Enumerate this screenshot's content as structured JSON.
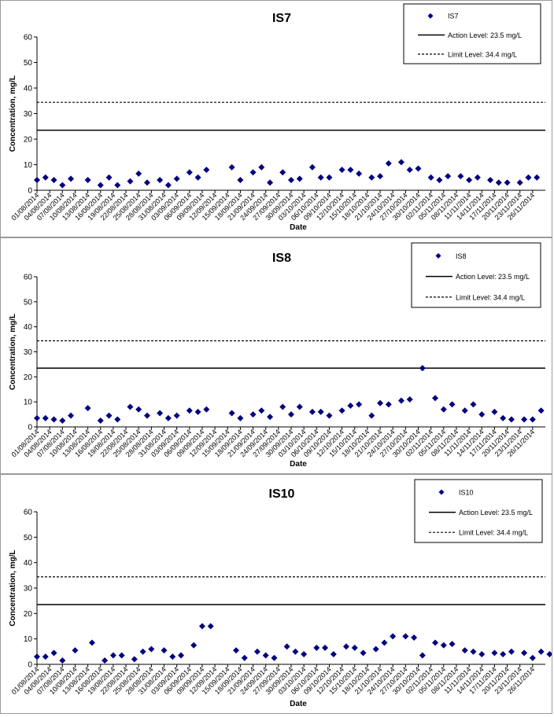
{
  "chart_data": [
    {
      "type": "scatter",
      "title": "IS7",
      "xlabel": "Date",
      "ylabel": "Concentration, mg/L",
      "ylim": [
        0,
        60
      ],
      "yticks": [
        0,
        10,
        20,
        30,
        40,
        50,
        60
      ],
      "x_tick_labels": [
        "01/08/2014",
        "04/08/2014",
        "07/08/2014",
        "10/08/2014",
        "13/08/2014",
        "16/08/2014",
        "19/08/2014",
        "22/08/2014",
        "25/08/2014",
        "28/08/2014",
        "31/08/2014",
        "03/09/2014",
        "06/09/2014",
        "09/09/2014",
        "12/09/2014",
        "15/09/2014",
        "18/09/2014",
        "21/09/2014",
        "24/09/2014",
        "27/09/2014",
        "30/09/2014",
        "03/10/2014",
        "06/10/2014",
        "09/10/2014",
        "12/10/2014",
        "15/10/2014",
        "18/10/2014",
        "21/10/2014",
        "24/10/2014",
        "27/10/2014",
        "30/10/2014",
        "02/11/2014",
        "05/11/2014",
        "08/11/2014",
        "11/11/2014",
        "14/11/2014",
        "17/11/2014",
        "20/11/2014",
        "23/11/2014",
        "26/11/2014"
      ],
      "legend": {
        "position": "top-right",
        "entries": [
          "IS7",
          "Action Level: 23.5 mg/L",
          "Limit Level: 34.4 mg/L"
        ]
      },
      "series": [
        {
          "name": "IS7",
          "marker": "diamond",
          "color": "#000080",
          "points": [
            [
              "01/08/2014",
              4
            ],
            [
              "03/08/2014",
              5
            ],
            [
              "05/08/2014",
              4
            ],
            [
              "07/08/2014",
              2
            ],
            [
              "09/08/2014",
              4.5
            ],
            [
              "13/08/2014",
              4
            ],
            [
              "16/08/2014",
              2
            ],
            [
              "18/08/2014",
              5
            ],
            [
              "20/08/2014",
              2
            ],
            [
              "23/08/2014",
              3.5
            ],
            [
              "25/08/2014",
              6.5
            ],
            [
              "27/08/2014",
              3
            ],
            [
              "30/08/2014",
              4
            ],
            [
              "01/09/2014",
              2
            ],
            [
              "03/09/2014",
              4.5
            ],
            [
              "06/09/2014",
              7
            ],
            [
              "08/09/2014",
              5
            ],
            [
              "10/09/2014",
              8
            ],
            [
              "16/09/2014",
              9
            ],
            [
              "18/09/2014",
              4
            ],
            [
              "21/09/2014",
              7
            ],
            [
              "23/09/2014",
              9
            ],
            [
              "25/09/2014",
              3
            ],
            [
              "28/09/2014",
              7
            ],
            [
              "30/09/2014",
              4
            ],
            [
              "02/10/2014",
              4.5
            ],
            [
              "05/10/2014",
              9
            ],
            [
              "07/10/2014",
              5
            ],
            [
              "09/10/2014",
              5
            ],
            [
              "12/10/2014",
              8
            ],
            [
              "14/10/2014",
              8
            ],
            [
              "16/10/2014",
              6.5
            ],
            [
              "19/10/2014",
              5
            ],
            [
              "21/10/2014",
              5.5
            ],
            [
              "23/10/2014",
              10.5
            ],
            [
              "26/10/2014",
              11
            ],
            [
              "28/10/2014",
              8
            ],
            [
              "30/10/2014",
              8.5
            ],
            [
              "02/11/2014",
              5
            ],
            [
              "04/11/2014",
              4
            ],
            [
              "06/11/2014",
              5.5
            ],
            [
              "09/11/2014",
              5.5
            ],
            [
              "11/11/2014",
              4
            ],
            [
              "13/11/2014",
              5
            ],
            [
              "16/11/2014",
              4
            ],
            [
              "18/11/2014",
              3
            ],
            [
              "20/11/2014",
              3
            ],
            [
              "23/11/2014",
              3
            ],
            [
              "25/11/2014",
              5
            ],
            [
              "27/11/2014",
              5
            ]
          ]
        }
      ],
      "reference_lines": [
        {
          "label": "Action Level: 23.5 mg/L",
          "value": 23.5,
          "style": "solid"
        },
        {
          "label": "Limit Level: 34.4 mg/L",
          "value": 34.4,
          "style": "dashed"
        }
      ]
    },
    {
      "type": "scatter",
      "title": "IS8",
      "xlabel": "Date",
      "ylabel": "Concentration, mg/L",
      "ylim": [
        0,
        60
      ],
      "yticks": [
        0,
        10,
        20,
        30,
        40,
        50,
        60
      ],
      "x_tick_labels": [
        "01/08/2014",
        "04/08/2014",
        "07/08/2014",
        "10/08/2014",
        "13/08/2014",
        "16/08/2014",
        "19/08/2014",
        "22/08/2014",
        "25/08/2014",
        "28/08/2014",
        "31/08/2014",
        "03/09/2014",
        "06/09/2014",
        "09/09/2014",
        "12/09/2014",
        "15/09/2014",
        "18/09/2014",
        "21/09/2014",
        "24/09/2014",
        "27/09/2014",
        "30/09/2014",
        "03/10/2014",
        "06/10/2014",
        "09/10/2014",
        "12/10/2014",
        "15/10/2014",
        "18/10/2014",
        "21/10/2014",
        "24/10/2014",
        "27/10/2014",
        "30/10/2014",
        "02/11/2014",
        "05/11/2014",
        "08/11/2014",
        "11/11/2014",
        "14/11/2014",
        "17/11/2014",
        "20/11/2014",
        "23/11/2014",
        "26/11/2014"
      ],
      "legend": {
        "position": "top-right",
        "entries": [
          "IS8",
          "Action Level: 23.5 mg/L",
          "Limit Level: 34.4 mg/L"
        ]
      },
      "series": [
        {
          "name": "IS8",
          "marker": "diamond",
          "color": "#000080",
          "points": [
            [
              "01/08/2014",
              3.5
            ],
            [
              "03/08/2014",
              3.5
            ],
            [
              "05/08/2014",
              3
            ],
            [
              "07/08/2014",
              2.5
            ],
            [
              "09/08/2014",
              4.5
            ],
            [
              "13/08/2014",
              7.5
            ],
            [
              "16/08/2014",
              2.5
            ],
            [
              "18/08/2014",
              4.5
            ],
            [
              "20/08/2014",
              3
            ],
            [
              "23/08/2014",
              8
            ],
            [
              "25/08/2014",
              7
            ],
            [
              "27/08/2014",
              4.5
            ],
            [
              "30/08/2014",
              5.5
            ],
            [
              "01/09/2014",
              3.5
            ],
            [
              "03/09/2014",
              4.5
            ],
            [
              "06/09/2014",
              6.5
            ],
            [
              "08/09/2014",
              6
            ],
            [
              "10/09/2014",
              7
            ],
            [
              "16/09/2014",
              5.5
            ],
            [
              "18/09/2014",
              3.5
            ],
            [
              "21/09/2014",
              5
            ],
            [
              "23/09/2014",
              6.5
            ],
            [
              "25/09/2014",
              4
            ],
            [
              "28/09/2014",
              8
            ],
            [
              "30/09/2014",
              5
            ],
            [
              "02/10/2014",
              8
            ],
            [
              "05/10/2014",
              6
            ],
            [
              "07/10/2014",
              6
            ],
            [
              "09/10/2014",
              4.5
            ],
            [
              "12/10/2014",
              6.5
            ],
            [
              "14/10/2014",
              8.5
            ],
            [
              "16/10/2014",
              9
            ],
            [
              "19/10/2014",
              4.5
            ],
            [
              "21/10/2014",
              9.5
            ],
            [
              "23/10/2014",
              9
            ],
            [
              "26/10/2014",
              10.5
            ],
            [
              "28/10/2014",
              11
            ],
            [
              "31/10/2014",
              23.5
            ],
            [
              "03/11/2014",
              11.5
            ],
            [
              "05/11/2014",
              7
            ],
            [
              "07/11/2014",
              9
            ],
            [
              "10/11/2014",
              6.5
            ],
            [
              "12/11/2014",
              9
            ],
            [
              "14/11/2014",
              5
            ],
            [
              "17/11/2014",
              6
            ],
            [
              "19/11/2014",
              3.5
            ],
            [
              "21/11/2014",
              3
            ],
            [
              "24/11/2014",
              3
            ],
            [
              "26/11/2014",
              3
            ],
            [
              "28/11/2014",
              6.5
            ]
          ]
        }
      ],
      "reference_lines": [
        {
          "label": "Action Level: 23.5 mg/L",
          "value": 23.5,
          "style": "solid"
        },
        {
          "label": "Limit Level: 34.4 mg/L",
          "value": 34.4,
          "style": "dashed"
        }
      ]
    },
    {
      "type": "scatter",
      "title": "IS10",
      "xlabel": "Date",
      "ylabel": "Concentration, mg/L",
      "ylim": [
        0,
        60
      ],
      "yticks": [
        0,
        10,
        20,
        30,
        40,
        50,
        60
      ],
      "x_tick_labels": [
        "01/08/2014",
        "04/08/2014",
        "07/08/2014",
        "10/08/2014",
        "13/08/2014",
        "16/08/2014",
        "19/08/2014",
        "22/08/2014",
        "25/08/2014",
        "28/08/2014",
        "31/08/2014",
        "03/09/2014",
        "06/09/2014",
        "09/09/2014",
        "12/09/2014",
        "15/09/2014",
        "18/09/2014",
        "21/09/2014",
        "24/09/2014",
        "27/09/2014",
        "30/09/2014",
        "03/10/2014",
        "06/10/2014",
        "09/10/2014",
        "12/10/2014",
        "15/10/2014",
        "18/10/2014",
        "21/10/2014",
        "24/10/2014",
        "27/10/2014",
        "30/10/2014",
        "02/11/2014",
        "05/11/2014",
        "08/11/2014",
        "11/11/2014",
        "14/11/2014",
        "17/11/2014",
        "20/11/2014",
        "23/11/2014",
        "26/11/2014"
      ],
      "legend": {
        "position": "top-right",
        "entries": [
          "IS10",
          "Action Level: 23.5 mg/L",
          "Limit Level: 34.4 mg/L"
        ]
      },
      "series": [
        {
          "name": "IS10",
          "marker": "diamond",
          "color": "#000080",
          "points": [
            [
              "01/08/2014",
              3
            ],
            [
              "03/08/2014",
              3
            ],
            [
              "05/08/2014",
              4.5
            ],
            [
              "07/08/2014",
              1.5
            ],
            [
              "10/08/2014",
              5.5
            ],
            [
              "14/08/2014",
              8.5
            ],
            [
              "17/08/2014",
              1.5
            ],
            [
              "19/08/2014",
              3.5
            ],
            [
              "21/08/2014",
              3.5
            ],
            [
              "24/08/2014",
              2
            ],
            [
              "26/08/2014",
              5
            ],
            [
              "28/08/2014",
              6
            ],
            [
              "31/08/2014",
              5.5
            ],
            [
              "02/09/2014",
              3
            ],
            [
              "04/09/2014",
              3.5
            ],
            [
              "07/09/2014",
              7.5
            ],
            [
              "09/09/2014",
              15
            ],
            [
              "11/09/2014",
              15
            ],
            [
              "17/09/2014",
              5.5
            ],
            [
              "19/09/2014",
              2.5
            ],
            [
              "22/09/2014",
              5
            ],
            [
              "24/09/2014",
              3.5
            ],
            [
              "26/09/2014",
              2.5
            ],
            [
              "29/09/2014",
              7
            ],
            [
              "01/10/2014",
              5
            ],
            [
              "03/10/2014",
              4
            ],
            [
              "06/10/2014",
              6.5
            ],
            [
              "08/10/2014",
              6.5
            ],
            [
              "10/10/2014",
              4
            ],
            [
              "13/10/2014",
              7
            ],
            [
              "15/10/2014",
              6.5
            ],
            [
              "17/10/2014",
              4.5
            ],
            [
              "20/10/2014",
              6
            ],
            [
              "22/10/2014",
              8.5
            ],
            [
              "24/10/2014",
              11
            ],
            [
              "27/10/2014",
              11
            ],
            [
              "29/10/2014",
              10.5
            ],
            [
              "31/10/2014",
              3.5
            ],
            [
              "03/11/2014",
              8.5
            ],
            [
              "05/11/2014",
              7.5
            ],
            [
              "07/11/2014",
              8
            ],
            [
              "10/11/2014",
              5.5
            ],
            [
              "12/11/2014",
              5
            ],
            [
              "14/11/2014",
              4
            ],
            [
              "17/11/2014",
              4.5
            ],
            [
              "19/11/2014",
              4
            ],
            [
              "21/11/2014",
              5
            ],
            [
              "24/11/2014",
              4.5
            ],
            [
              "26/11/2014",
              2.5
            ],
            [
              "28/11/2014",
              5
            ],
            [
              "30/11/2014",
              4
            ]
          ]
        }
      ],
      "reference_lines": [
        {
          "label": "Action Level: 23.5 mg/L",
          "value": 23.5,
          "style": "solid"
        },
        {
          "label": "Limit Level: 34.4 mg/L",
          "value": 34.4,
          "style": "dashed"
        }
      ]
    }
  ]
}
